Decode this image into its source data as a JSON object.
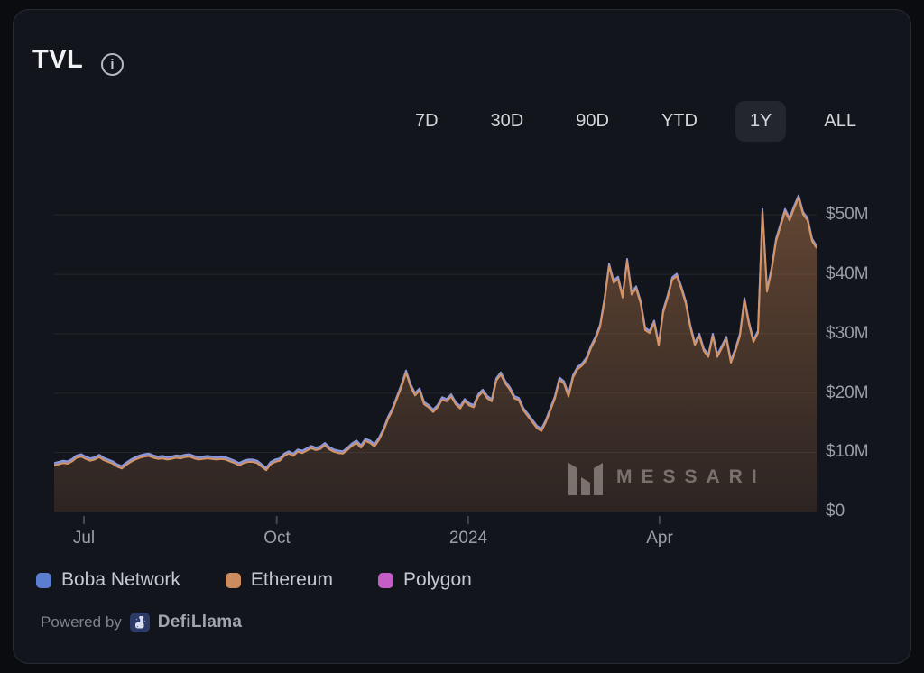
{
  "card": {
    "title": "TVL",
    "info_icon_glyph": "i"
  },
  "range_buttons": [
    {
      "label": "7D",
      "active": false
    },
    {
      "label": "30D",
      "active": false
    },
    {
      "label": "90D",
      "active": false
    },
    {
      "label": "YTD",
      "active": false
    },
    {
      "label": "1Y",
      "active": true
    },
    {
      "label": "ALL",
      "active": false
    }
  ],
  "legend": [
    {
      "label": "Boba Network",
      "color": "#5b7ed0"
    },
    {
      "label": "Ethereum",
      "color": "#cd8c5c"
    },
    {
      "label": "Polygon",
      "color": "#c45ec6"
    }
  ],
  "watermark": "MESSARI",
  "footer": {
    "powered_by": "Powered by",
    "brand": "DefiLlama"
  },
  "chart_data": {
    "type": "area",
    "stacked": true,
    "title": "TVL",
    "unit": "USD millions",
    "selected_range": "1Y",
    "ylim": [
      0,
      55
    ],
    "grid": true,
    "y_ticks": [
      {
        "label": "$50M",
        "value": 50
      },
      {
        "label": "$40M",
        "value": 40
      },
      {
        "label": "$30M",
        "value": 30
      },
      {
        "label": "$20M",
        "value": 20
      },
      {
        "label": "$10M",
        "value": 10
      },
      {
        "label": "$0",
        "value": 0
      }
    ],
    "x_ticks": [
      {
        "label": "Jul",
        "f": 0.039
      },
      {
        "label": "Oct",
        "f": 0.292
      },
      {
        "label": "2024",
        "f": 0.543
      },
      {
        "label": "Apr",
        "f": 0.794
      }
    ],
    "series": [
      {
        "name": "Boba Network",
        "color": "#5b7ed0",
        "line_color": "#8c98d8",
        "values_constant": 0.4
      },
      {
        "name": "Ethereum",
        "color": "#cd8c5c",
        "line_color": "#d49466",
        "values": [
          7.8,
          8.0,
          8.2,
          8.1,
          8.5,
          9.1,
          9.3,
          8.9,
          8.6,
          8.8,
          9.2,
          8.7,
          8.4,
          8.1,
          7.6,
          7.3,
          7.9,
          8.4,
          8.8,
          9.1,
          9.3,
          9.4,
          9.1,
          8.9,
          9.0,
          8.8,
          8.9,
          9.1,
          9.0,
          9.2,
          9.3,
          9.0,
          8.8,
          8.9,
          9.0,
          8.9,
          8.8,
          8.9,
          8.8,
          8.5,
          8.2,
          7.8,
          8.2,
          8.4,
          8.4,
          8.2,
          7.6,
          7.0,
          8.0,
          8.4,
          8.6,
          9.4,
          9.8,
          9.4,
          10.1,
          9.9,
          10.3,
          10.7,
          10.4,
          10.6,
          11.2,
          10.5,
          10.1,
          9.9,
          9.8,
          10.4,
          11.1,
          11.6,
          10.8,
          11.9,
          11.6,
          11.0,
          12.1,
          13.6,
          15.6,
          17.1,
          19.1,
          21.1,
          23.4,
          21.1,
          19.6,
          20.4,
          18.1,
          17.6,
          16.8,
          17.6,
          18.9,
          18.6,
          19.4,
          18.1,
          17.4,
          18.6,
          17.9,
          17.6,
          19.4,
          20.2,
          19.1,
          18.6,
          22.1,
          23.1,
          21.6,
          20.6,
          19.1,
          18.8,
          17.1,
          16.1,
          15.1,
          14.1,
          13.6,
          15.1,
          17.1,
          19.1,
          22.2,
          21.6,
          19.4,
          22.6,
          24.0,
          24.6,
          25.6,
          27.6,
          29.1,
          31.1,
          35.6,
          41.4,
          38.6,
          39.2,
          36.1,
          42.2,
          36.6,
          37.6,
          35.1,
          30.6,
          30.1,
          31.8,
          28.0,
          33.6,
          36.1,
          39.1,
          39.7,
          37.6,
          35.1,
          31.1,
          28.1,
          29.6,
          27.1,
          26.1,
          29.6,
          26.1,
          27.6,
          29.1,
          25.1,
          27.1,
          29.6,
          35.6,
          31.6,
          28.6,
          30.1,
          50.6,
          37.1,
          40.6,
          45.6,
          48.1,
          50.6,
          49.1,
          51.1,
          52.9,
          50.1,
          49.1,
          45.6,
          44.4
        ]
      },
      {
        "name": "Polygon",
        "color": "#c45ec6",
        "line_color": "#c45ec6",
        "values_constant": 0
      }
    ]
  }
}
